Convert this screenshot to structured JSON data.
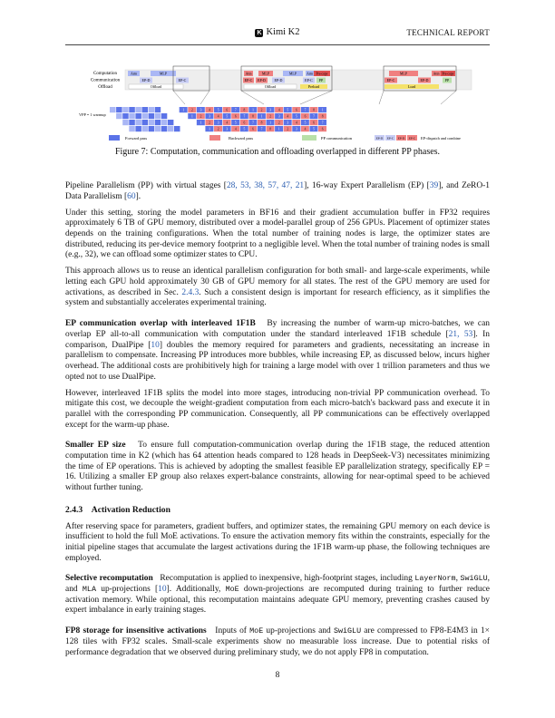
{
  "header": {
    "title": "Kimi K2",
    "logo_letter": "K",
    "right": "TECHNICAL REPORT"
  },
  "figure": {
    "rows": [
      "Computation",
      "Communication",
      "Offload"
    ],
    "schedule_label": "VPP = 1 warmup",
    "rect_labels": {
      "attn": "Attn",
      "mlp": "MLP",
      "ep_d": "EP-D",
      "ep_c": "EP-C",
      "pp": "PP",
      "offload": "Offload",
      "load": "Load",
      "preload": "Preload",
      "precopy": "Pre-copy"
    },
    "legend": [
      "Forward pass",
      "Backward pass",
      "PP communication",
      "EP-dispatch and combine"
    ],
    "legend_swatches": [
      "EP-D",
      "EP-C",
      "EP-D",
      "EP-C"
    ],
    "colors": {
      "fwd": "#5b73e8",
      "fwd_light": "#aab7f5",
      "bwd": "#f08080",
      "bwd_dark": "#e05050",
      "pp": "#b8e0a8",
      "ep": "#c7ccf5"
    }
  },
  "caption": "Figure 7: Computation, communication and offloading overlapped in different PP phases.",
  "paragraphs": {
    "p1": {
      "a": "Pipeline Parallelism (PP) with virtual stages [",
      "cites": "28, 53, 38, 57, 47, 21",
      "b": "], 16-way Expert Parallelism (EP) [",
      "cite2": "39",
      "c": "], and ZeRO-1 Data Parallelism [",
      "cite3": "60",
      "d": "]."
    },
    "p2": "Under this setting, storing the model parameters in BF16 and their gradient accumulation buffer in FP32 requires approximately 6 TB of GPU memory, distributed over a model-parallel group of 256 GPUs. Placement of optimizer states depends on the training configurations. When the total number of training nodes is large, the optimizer states are distributed, reducing its per-device memory footprint to a negligible level. When the total number of training nodes is small (e.g., 32), we can offload some optimizer states to CPU.",
    "p3": {
      "a": "This approach allows us to reuse an identical parallelism configuration for both small- and large-scale experiments, while letting each GPU hold approximately 30 GB of GPU memory for all states. The rest of the GPU memory are used for activations, as described in Sec. ",
      "ref": "2.4.3",
      "b": ". Such a consistent design is important for research efficiency, as it simplifies the system and substantially accelerates experimental training."
    },
    "p4": {
      "run": "EP communication overlap with interleaved 1F1B",
      "a": "By increasing the number of warm-up micro-batches, we can overlap EP all-to-all communication with computation under the standard interleaved 1F1B schedule [",
      "cites": "21, 53",
      "b": "]. In comparison, DualPipe [",
      "cite2": "10",
      "c": "] doubles the memory required for parameters and gradients, necessitating an increase in parallelism to compensate. Increasing PP introduces more bubbles, while increasing EP, as discussed below, incurs higher overhead. The additional costs are prohibitively high for training a large model with over 1 trillion parameters and thus we opted not to use DualPipe."
    },
    "p5": "However, interleaved 1F1B splits the model into more stages, introducing non-trivial PP communication overhead. To mitigate this cost, we decouple the weight-gradient computation from each micro-batch's backward pass and execute it in parallel with the corresponding PP communication. Consequently, all PP communications can be effectively overlapped except for the warm-up phase.",
    "p6": {
      "run": "Smaller EP size",
      "a": "To ensure full computation-communication overlap during the 1F1B stage, the reduced attention computation time in K2 (which has 64 attention heads compared to 128 heads in DeepSeek-V3) necessitates minimizing the time of EP operations. This is achieved by adopting the smallest feasible EP parallelization strategy, specifically EP = 16. Utilizing a smaller EP group also relaxes expert-balance constraints, allowing for near-optimal speed to be achieved without further tuning."
    },
    "h": {
      "num": "2.4.3",
      "title": "Activation Reduction"
    },
    "p7": "After reserving space for parameters, gradient buffers, and optimizer states, the remaining GPU memory on each device is insufficient to hold the full MoE activations. To ensure the activation memory fits within the constraints, especially for the initial pipeline stages that accumulate the largest activations during the 1F1B warm-up phase, the following techniques are employed.",
    "p8": {
      "run": "Selective recomputation",
      "a": "Recomputation is applied to inexpensive, high-footprint stages, including ",
      "c1": "LayerNorm",
      "b": ", ",
      "c2": "SwiGLU",
      "c": ", and ",
      "c3": "MLA",
      "d": " up-projections [",
      "cite": "10",
      "e": "]. Additionally, ",
      "c4": "MoE",
      "f": " down-projections are recomputed during training to further reduce activation memory. While optional, this recomputation maintains adequate GPU memory, preventing crashes caused by expert imbalance in early training stages."
    },
    "p9": {
      "run": "FP8 storage for insensitive activations",
      "a": "Inputs of ",
      "c1": "MoE",
      "b": " up-projections and ",
      "c2": "SwiGLU",
      "c": " are compressed to FP8-E4M3 in 1× 128 tiles with FP32 scales. Small-scale experiments show no measurable loss increase. Due to potential risks of performance degradation that we observed during preliminary study, we do not apply FP8 in computation."
    }
  },
  "page_number": "8"
}
